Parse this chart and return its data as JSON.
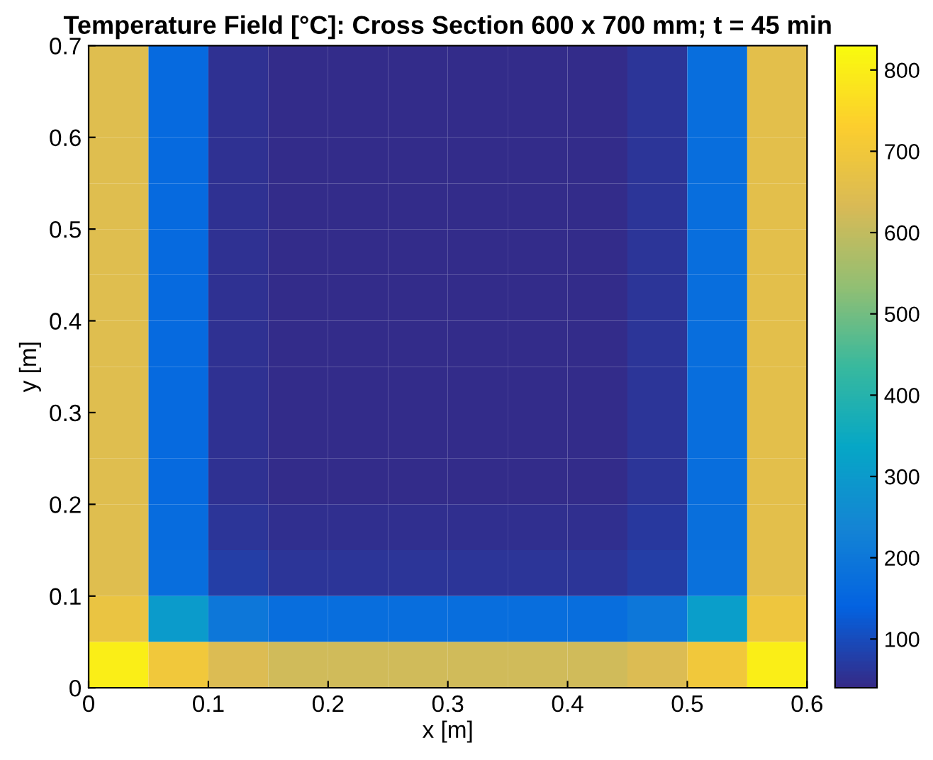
{
  "chart_data": {
    "type": "heatmap",
    "title": "Temperature Field [°C]: Cross Section 600 x 700 mm; t = 45 min",
    "xlabel": "x [m]",
    "ylabel": "y [m]",
    "x": [
      0.025,
      0.075,
      0.125,
      0.175,
      0.225,
      0.275,
      0.325,
      0.375,
      0.425,
      0.475,
      0.525,
      0.575
    ],
    "y": [
      0.675,
      0.625,
      0.575,
      0.525,
      0.475,
      0.425,
      0.375,
      0.325,
      0.275,
      0.225,
      0.175,
      0.125,
      0.075,
      0.025
    ],
    "cells": [
      [
        650,
        160,
        55,
        45,
        45,
        45,
        45,
        45,
        45,
        60,
        170,
        660
      ],
      [
        650,
        160,
        55,
        45,
        45,
        45,
        45,
        45,
        45,
        60,
        170,
        660
      ],
      [
        650,
        160,
        55,
        45,
        45,
        45,
        45,
        45,
        45,
        60,
        170,
        660
      ],
      [
        650,
        160,
        55,
        45,
        45,
        45,
        45,
        45,
        45,
        60,
        170,
        660
      ],
      [
        650,
        160,
        55,
        45,
        45,
        45,
        45,
        45,
        45,
        60,
        170,
        660
      ],
      [
        650,
        160,
        55,
        45,
        45,
        45,
        45,
        45,
        45,
        60,
        170,
        660
      ],
      [
        650,
        160,
        55,
        45,
        45,
        45,
        45,
        45,
        45,
        60,
        170,
        660
      ],
      [
        650,
        160,
        55,
        45,
        45,
        45,
        45,
        45,
        45,
        60,
        170,
        660
      ],
      [
        650,
        160,
        55,
        45,
        45,
        45,
        45,
        45,
        45,
        60,
        170,
        660
      ],
      [
        650,
        160,
        55,
        45,
        45,
        45,
        45,
        45,
        45,
        60,
        170,
        660
      ],
      [
        650,
        165,
        60,
        50,
        50,
        50,
        50,
        50,
        50,
        65,
        175,
        660
      ],
      [
        650,
        170,
        75,
        60,
        60,
        60,
        60,
        60,
        60,
        75,
        180,
        660
      ],
      [
        680,
        300,
        200,
        170,
        170,
        170,
        170,
        170,
        170,
        200,
        310,
        690
      ],
      [
        800,
        700,
        640,
        620,
        620,
        620,
        620,
        620,
        620,
        640,
        700,
        800
      ]
    ],
    "xlim": [
      0,
      0.6
    ],
    "xticks": [
      0,
      0.1,
      0.2,
      0.3,
      0.4,
      0.5,
      0.6
    ],
    "ylim": [
      0,
      0.7
    ],
    "yticks": [
      0,
      0.1,
      0.2,
      0.3,
      0.4,
      0.5,
      0.6,
      0.7
    ],
    "clim": [
      40,
      830
    ],
    "cticks": [
      100,
      200,
      300,
      400,
      500,
      600,
      700,
      800
    ]
  }
}
